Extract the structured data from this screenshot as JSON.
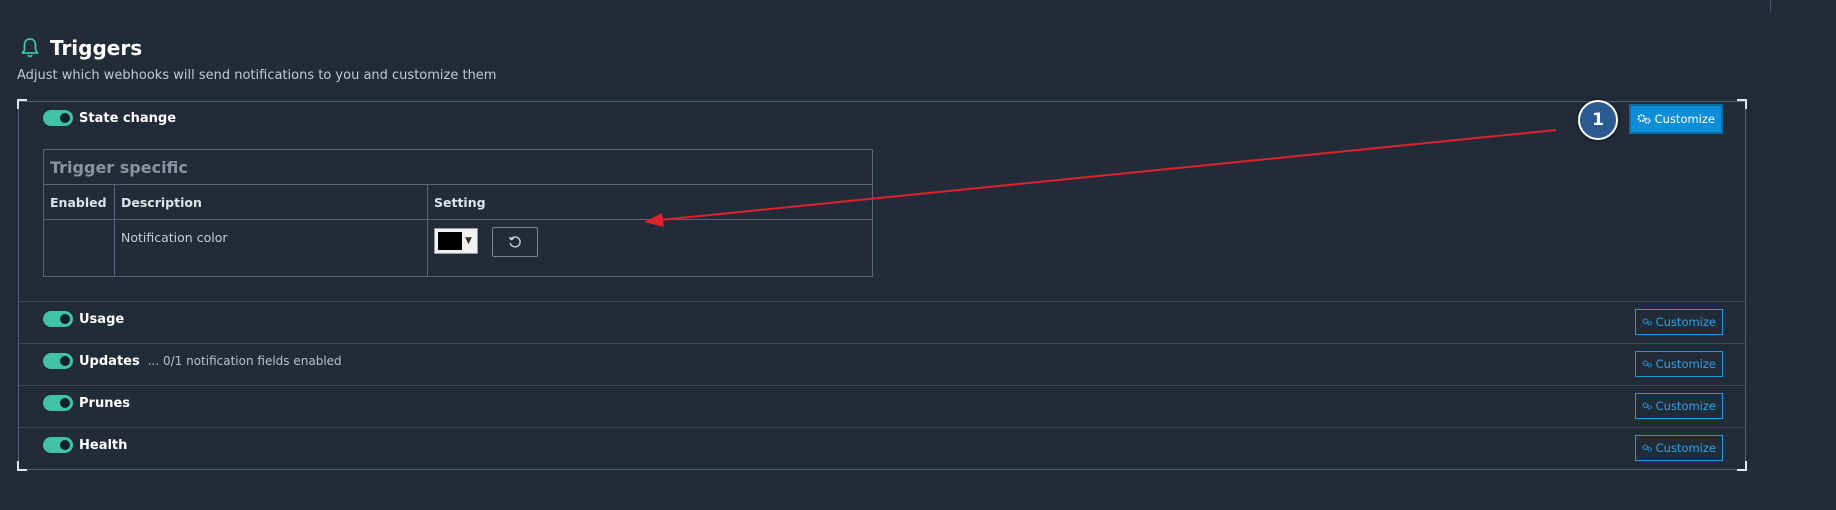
{
  "header": {
    "title": "Triggers",
    "subtitle": "Adjust which webhooks will send notifications to you and customize them"
  },
  "triggers": [
    {
      "label": "State change",
      "extra": "",
      "enabled": true,
      "customize": "Customize"
    },
    {
      "label": "Usage",
      "extra": "",
      "enabled": true,
      "customize": "Customize"
    },
    {
      "label": "Updates",
      "extra": "... 0/1 notification fields enabled",
      "enabled": true,
      "customize": "Customize"
    },
    {
      "label": "Prunes",
      "extra": "",
      "enabled": true,
      "customize": "Customize"
    },
    {
      "label": "Health",
      "extra": "",
      "enabled": true,
      "customize": "Customize"
    }
  ],
  "table": {
    "title": "Trigger specific",
    "headers": [
      "Enabled",
      "Description",
      "Setting"
    ],
    "row": {
      "description": "Notification color",
      "color_value": "#000000"
    }
  },
  "annotation": {
    "step": "1"
  },
  "colors": {
    "accent": "#0e8ed9",
    "toggle": "#3fc3a4",
    "arrow": "#e0222a",
    "background": "#222b38"
  },
  "icons": {
    "bell": "bell-icon",
    "gears": "gears-icon",
    "reset": "reset-icon",
    "caret": "chevron-down-icon"
  }
}
